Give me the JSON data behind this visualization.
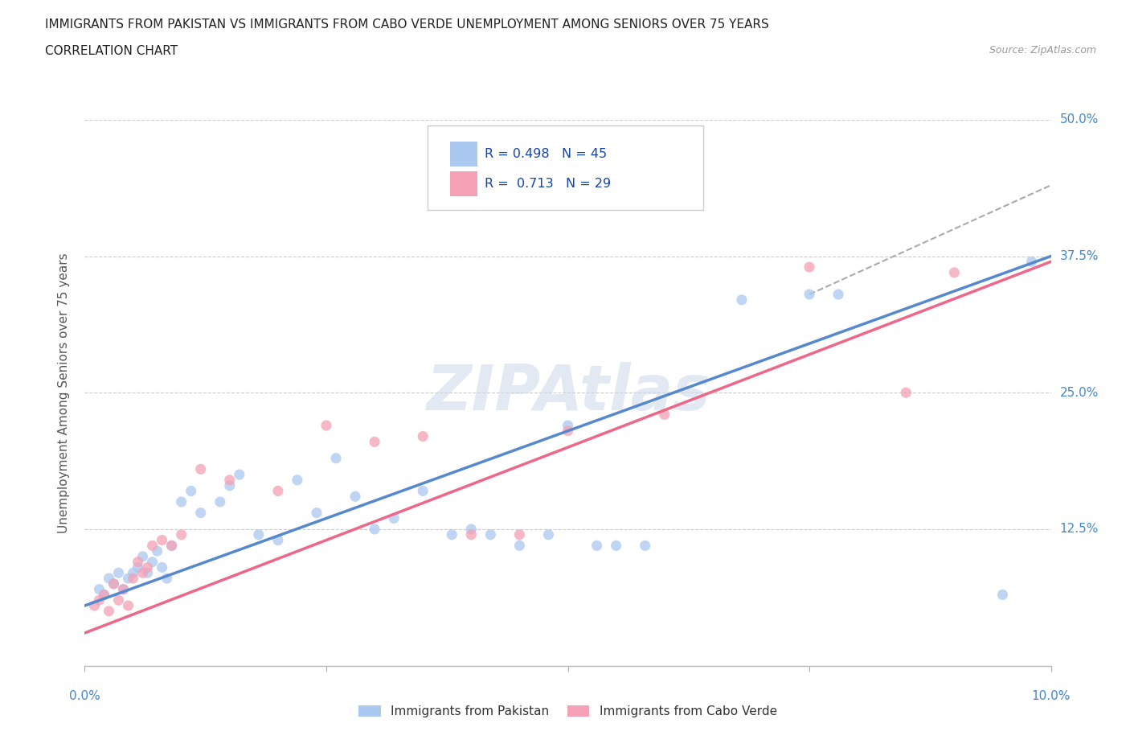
{
  "title_line1": "IMMIGRANTS FROM PAKISTAN VS IMMIGRANTS FROM CABO VERDE UNEMPLOYMENT AMONG SENIORS OVER 75 YEARS",
  "title_line2": "CORRELATION CHART",
  "source_text": "Source: ZipAtlas.com",
  "ylabel_label": "Unemployment Among Seniors over 75 years",
  "ytick_labels": [
    "0.0%",
    "12.5%",
    "25.0%",
    "37.5%",
    "50.0%"
  ],
  "ytick_values": [
    0.0,
    12.5,
    25.0,
    37.5,
    50.0
  ],
  "xtick_values": [
    0.0,
    2.5,
    5.0,
    7.5,
    10.0
  ],
  "xmin": 0.0,
  "xmax": 10.0,
  "ymin": 0.0,
  "ymax": 50.0,
  "pakistan_color": "#aac8f0",
  "cabo_verde_color": "#f4a0b5",
  "pakistan_R": 0.498,
  "pakistan_N": 45,
  "cabo_verde_R": 0.713,
  "cabo_verde_N": 29,
  "legend_label_pakistan": "Immigrants from Pakistan",
  "legend_label_cabo_verde": "Immigrants from Cabo Verde",
  "pakistan_scatter_x": [
    0.15,
    0.2,
    0.25,
    0.3,
    0.35,
    0.4,
    0.45,
    0.5,
    0.55,
    0.6,
    0.65,
    0.7,
    0.75,
    0.8,
    0.85,
    0.9,
    1.0,
    1.1,
    1.2,
    1.4,
    1.5,
    1.6,
    1.8,
    2.0,
    2.2,
    2.4,
    2.6,
    2.8,
    3.0,
    3.2,
    3.5,
    3.8,
    4.0,
    4.2,
    4.5,
    4.8,
    5.0,
    5.3,
    5.5,
    5.8,
    6.8,
    7.5,
    7.8,
    9.5,
    9.8
  ],
  "pakistan_scatter_y": [
    7.0,
    6.5,
    8.0,
    7.5,
    8.5,
    7.0,
    8.0,
    8.5,
    9.0,
    10.0,
    8.5,
    9.5,
    10.5,
    9.0,
    8.0,
    11.0,
    15.0,
    16.0,
    14.0,
    15.0,
    16.5,
    17.5,
    12.0,
    11.5,
    17.0,
    14.0,
    19.0,
    15.5,
    12.5,
    13.5,
    16.0,
    12.0,
    12.5,
    12.0,
    11.0,
    12.0,
    22.0,
    11.0,
    11.0,
    11.0,
    33.5,
    34.0,
    34.0,
    6.5,
    37.0
  ],
  "cabo_verde_scatter_x": [
    0.1,
    0.15,
    0.2,
    0.25,
    0.3,
    0.35,
    0.4,
    0.45,
    0.5,
    0.55,
    0.6,
    0.65,
    0.7,
    0.8,
    0.9,
    1.0,
    1.2,
    1.5,
    2.0,
    2.5,
    3.0,
    3.5,
    4.0,
    4.5,
    5.0,
    6.0,
    7.5,
    8.5,
    9.0
  ],
  "cabo_verde_scatter_y": [
    5.5,
    6.0,
    6.5,
    5.0,
    7.5,
    6.0,
    7.0,
    5.5,
    8.0,
    9.5,
    8.5,
    9.0,
    11.0,
    11.5,
    11.0,
    12.0,
    18.0,
    17.0,
    16.0,
    22.0,
    20.5,
    21.0,
    12.0,
    12.0,
    21.5,
    23.0,
    36.5,
    25.0,
    36.0
  ],
  "watermark_text": "ZIPAtlas",
  "background_color": "#ffffff",
  "grid_color": "#cccccc",
  "trend_pakistan_color": "#5588cc",
  "trend_cabo_verde_color": "#ee6688",
  "trend_dashed_color": "#aaaaaa",
  "trend_pk_x0": 0.0,
  "trend_pk_y0": 5.5,
  "trend_pk_x1": 10.0,
  "trend_pk_y1": 37.5,
  "trend_cv_x0": 0.0,
  "trend_cv_y0": 3.0,
  "trend_cv_x1": 10.0,
  "trend_cv_y1": 37.0,
  "dash_x0": 7.5,
  "dash_y0": 34.0,
  "dash_x1": 10.0,
  "dash_y1": 44.0
}
